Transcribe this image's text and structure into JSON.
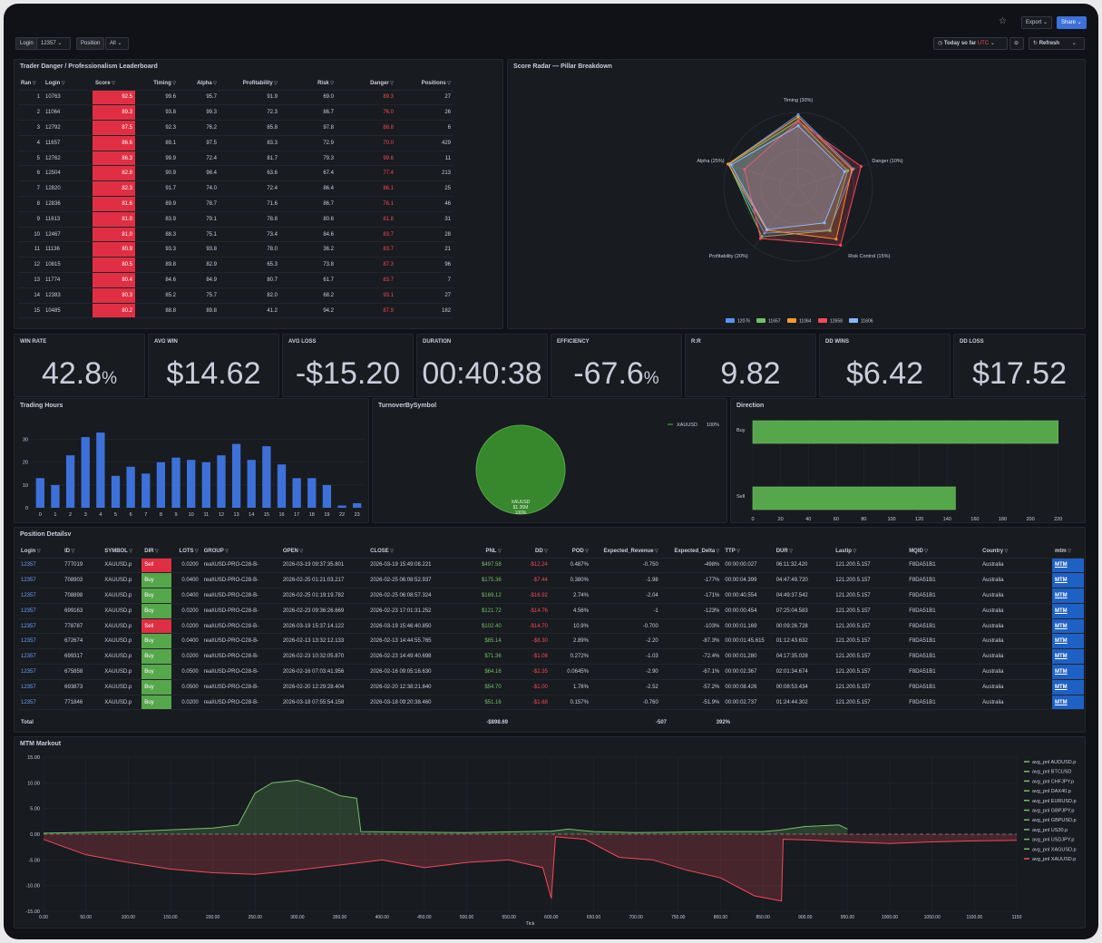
{
  "topbar": {
    "export_label": "Export",
    "share_label": "Share"
  },
  "filters": {
    "login_label": "Login",
    "login_value": "12357",
    "position_label": "Position",
    "position_value": "All"
  },
  "time": {
    "range_label": "Today so far",
    "tz": "UTC",
    "refresh_label": "Refresh"
  },
  "leaderboard": {
    "title": "Trader Danger / Professionalism Leaderboard",
    "columns": [
      "Ran",
      "Login",
      "Score",
      "Timing",
      "Alpha",
      "Profitability",
      "Risk",
      "Danger",
      "Positions"
    ],
    "rows": [
      [
        "1",
        "10763",
        "92.5",
        "99.6",
        "95.7",
        "91.9",
        "69.0",
        "89.3",
        "27"
      ],
      [
        "2",
        "11064",
        "89.3",
        "93.8",
        "99.3",
        "72.3",
        "86.7",
        "76.0",
        "26"
      ],
      [
        "3",
        "12792",
        "87.5",
        "92.3",
        "76.2",
        "85.8",
        "97.8",
        "88.8",
        "6"
      ],
      [
        "4",
        "11657",
        "86.6",
        "89.1",
        "97.5",
        "83.3",
        "72.9",
        "70.0",
        "429"
      ],
      [
        "5",
        "12762",
        "86.3",
        "99.9",
        "72.4",
        "81.7",
        "79.3",
        "99.6",
        "11"
      ],
      [
        "6",
        "12504",
        "82.8",
        "90.9",
        "98.4",
        "63.6",
        "67.4",
        "77.4",
        "213"
      ],
      [
        "7",
        "12820",
        "82.3",
        "91.7",
        "74.0",
        "72.4",
        "86.4",
        "86.1",
        "25"
      ],
      [
        "8",
        "12836",
        "81.6",
        "89.9",
        "78.7",
        "71.6",
        "86.7",
        "76.1",
        "46"
      ],
      [
        "9",
        "11613",
        "81.0",
        "83.9",
        "79.1",
        "78.8",
        "80.6",
        "81.8",
        "31"
      ],
      [
        "10",
        "12467",
        "81.0",
        "88.3",
        "75.1",
        "73.4",
        "84.6",
        "83.7",
        "28"
      ],
      [
        "11",
        "11136",
        "80.9",
        "93.3",
        "93.8",
        "78.0",
        "36.2",
        "83.7",
        "21"
      ],
      [
        "12",
        "10815",
        "80.5",
        "89.8",
        "82.9",
        "65.3",
        "73.8",
        "87.3",
        "96"
      ],
      [
        "13",
        "11774",
        "80.4",
        "84.6",
        "84.9",
        "80.7",
        "61.7",
        "83.7",
        "7"
      ],
      [
        "14",
        "12383",
        "80.3",
        "85.2",
        "75.7",
        "82.0",
        "68.2",
        "93.1",
        "27"
      ],
      [
        "15",
        "10485",
        "80.2",
        "88.8",
        "89.8",
        "41.2",
        "94.2",
        "87.9",
        "182"
      ]
    ]
  },
  "radar": {
    "title": "Score Radar — Pillar Breakdown",
    "axes": [
      "Timing (30%)",
      "Danger (10%)",
      "Risk Control (15%)",
      "Profitability (20%)",
      "Alpha (25%)"
    ],
    "series": [
      {
        "name": "12076",
        "color": "#5794f2",
        "values": [
          97,
          78,
          72,
          77,
          99
        ]
      },
      {
        "name": "11657",
        "color": "#73bf69",
        "values": [
          89,
          70,
          73,
          83,
          98
        ]
      },
      {
        "name": "11064",
        "color": "#ff9830",
        "values": [
          94,
          76,
          87,
          72,
          99
        ]
      },
      {
        "name": "12658",
        "color": "#f2495c",
        "values": [
          88,
          89,
          97,
          86,
          76
        ]
      },
      {
        "name": "11606",
        "color": "#8ab8ff",
        "values": [
          82,
          66,
          60,
          71,
          95
        ]
      }
    ]
  },
  "stats": [
    {
      "label": "WIN RATE",
      "value": "42.8",
      "unit": "%"
    },
    {
      "label": "AVG WIN",
      "value": "$14.62",
      "unit": ""
    },
    {
      "label": "AVG LOSS",
      "value": "-$15.20",
      "unit": ""
    },
    {
      "label": "DURATION",
      "value": "00:40:38",
      "unit": ""
    },
    {
      "label": "EFFICIENCY",
      "value": "-67.6",
      "unit": "%"
    },
    {
      "label": "R:R",
      "value": "9.82",
      "unit": ""
    },
    {
      "label": "DD WINS",
      "value": "$6.42",
      "unit": ""
    },
    {
      "label": "DD LOSS",
      "value": "$17.52",
      "unit": ""
    }
  ],
  "chart_data": [
    {
      "type": "bar",
      "title": "Trading Hours",
      "categories": [
        "0",
        "1",
        "2",
        "3",
        "4",
        "5",
        "6",
        "7",
        "8",
        "9",
        "10",
        "11",
        "12",
        "13",
        "14",
        "15",
        "16",
        "17",
        "18",
        "19",
        "22",
        "23"
      ],
      "values": [
        13,
        10,
        23,
        31,
        33,
        14,
        18,
        15,
        20,
        22,
        21,
        20,
        23,
        28,
        21,
        27,
        19,
        13,
        13,
        10,
        1,
        2
      ],
      "ylim": [
        0,
        35
      ],
      "yticks": [
        0,
        10,
        20,
        30
      ],
      "color": "#3d71d9"
    },
    {
      "type": "pie",
      "title": "TurnoverBySymbol",
      "legend": [
        "XAUUSD"
      ],
      "legend_value": "100%",
      "slices": [
        {
          "label": "XAUUSD",
          "value": 100
        }
      ],
      "slice_texts": [
        "XAUUSD",
        "$1.35M",
        "100%"
      ],
      "color": "#37872d"
    },
    {
      "type": "bar",
      "orientation": "horizontal",
      "title": "Direction",
      "categories": [
        "Buy",
        "Sell"
      ],
      "values": [
        220,
        146
      ],
      "xlim": [
        0,
        230
      ],
      "xticks": [
        0,
        20,
        40,
        60,
        80,
        100,
        120,
        140,
        160,
        180,
        200,
        220
      ],
      "color": "#56a64b"
    },
    {
      "type": "line",
      "title": "MTM Markout",
      "xlabel": "Tick",
      "ylim": [
        -15,
        15
      ],
      "yticks": [
        "15.00",
        "10.00",
        "5.00",
        "0.00",
        "-5.00",
        "-10.00",
        "-15.00"
      ],
      "xlim": [
        0,
        1150
      ],
      "xticks": [
        "0.00",
        "50.00",
        "100.00",
        "150.00",
        "200.00",
        "250.00",
        "300.00",
        "350.00",
        "400.00",
        "450.00",
        "500.00",
        "550.00",
        "600.00",
        "650.00",
        "700.00",
        "750.00",
        "800.00",
        "850.00",
        "900.00",
        "950.00",
        "1000.00",
        "1050.00",
        "1100.00",
        "1150"
      ],
      "series": [
        {
          "name": "avg_pnl AUDUSD.p",
          "color": "#73bf69"
        },
        {
          "name": "avg_pnl BTCUSD",
          "color": "#73bf69"
        },
        {
          "name": "avg_pnl CHFJPY.p",
          "color": "#73bf69"
        },
        {
          "name": "avg_pnl DAX40.p",
          "color": "#73bf69"
        },
        {
          "name": "avg_pnl EURUSD.p",
          "color": "#73bf69"
        },
        {
          "name": "avg_pnl GBPJPY.p",
          "color": "#73bf69"
        },
        {
          "name": "avg_pnl GBPUSD.p",
          "color": "#73bf69"
        },
        {
          "name": "avg_pnl US30.p",
          "color": "#73bf69"
        },
        {
          "name": "avg_pnl USDJPY.p",
          "color": "#73bf69"
        },
        {
          "name": "avg_pnl XAGUSD.p",
          "color": "#73bf69"
        },
        {
          "name": "avg_pnl XAUUSD.p",
          "color": "#f2495c",
          "points": [
            [
              0,
              -1
            ],
            [
              25,
              -2.5
            ],
            [
              50,
              -4
            ],
            [
              100,
              -5.5
            ],
            [
              150,
              -6.8
            ],
            [
              200,
              -7.5
            ],
            [
              250,
              -7.8
            ],
            [
              300,
              -7
            ],
            [
              350,
              -6
            ],
            [
              400,
              -5
            ],
            [
              450,
              -6.5
            ],
            [
              500,
              -5.5
            ],
            [
              550,
              -5
            ],
            [
              590,
              -6.5
            ],
            [
              600,
              -12.5
            ],
            [
              605,
              -0.5
            ],
            [
              640,
              -1
            ],
            [
              680,
              -4.5
            ],
            [
              720,
              -5
            ],
            [
              760,
              -7
            ],
            [
              800,
              -8.5
            ],
            [
              840,
              -12
            ],
            [
              872,
              -13
            ],
            [
              874,
              -1
            ],
            [
              900,
              -1.1
            ],
            [
              950,
              -1.5
            ],
            [
              1000,
              -1.8
            ],
            [
              1050,
              -1.5
            ],
            [
              1100,
              -1.3
            ],
            [
              1150,
              -1.2
            ]
          ]
        },
        {
          "name": "",
          "color": "#73bf69",
          "points": [
            [
              0,
              0.2
            ],
            [
              100,
              0.5
            ],
            [
              200,
              1.2
            ],
            [
              230,
              1.8
            ],
            [
              250,
              8
            ],
            [
              270,
              10
            ],
            [
              300,
              10.5
            ],
            [
              330,
              9
            ],
            [
              350,
              7.5
            ],
            [
              370,
              7
            ],
            [
              375,
              0.5
            ],
            [
              500,
              0.3
            ],
            [
              600,
              0.6
            ],
            [
              620,
              1
            ],
            [
              650,
              0.5
            ],
            [
              700,
              0.3
            ],
            [
              750,
              0.4
            ],
            [
              800,
              0.5
            ],
            [
              850,
              0.5
            ],
            [
              870,
              0.8
            ],
            [
              900,
              1.5
            ],
            [
              940,
              1.8
            ],
            [
              950,
              1
            ]
          ]
        }
      ]
    }
  ],
  "positions": {
    "title": "Position Detailsv",
    "columns": [
      "Login",
      "ID",
      "SYMBOL",
      "DIR",
      "LOTS",
      "GROUP",
      "OPEN",
      "CLOSE",
      "PNL",
      "DD",
      "POD",
      "Expected_Revenue",
      "Expected_Delta",
      "TTP",
      "DUR",
      "Lastip",
      "MQID",
      "Country",
      "mtm"
    ],
    "rows": [
      [
        "12357",
        "777019",
        "XAUUSD.p",
        "Sell",
        "0.0200",
        "real\\USD-PRO-C28-B-",
        "2026-03-19 09:37:35.801",
        "2026-03-19 15:49:08.221",
        "$497.58",
        "-$12.24",
        "0.487%",
        "-0.750",
        "-498%",
        "00:00:00.027",
        "06:11:32.420",
        "121.200.5.157",
        "F8DA51B1",
        "Australia",
        "MTM"
      ],
      [
        "12357",
        "708903",
        "XAUUSD.p",
        "Buy",
        "0.0400",
        "real\\USD-PRO-C28-B-",
        "2026-02-25 01:21:03.217",
        "2026-02-25 06:08:52.937",
        "$175.36",
        "-$7.44",
        "0.380%",
        "-1.98",
        "-177%",
        "00:00:04.399",
        "04:47:49.720",
        "121.200.5.157",
        "F8DA51B1",
        "Australia",
        "MTM"
      ],
      [
        "12357",
        "708898",
        "XAUUSD.p",
        "Buy",
        "0.0400",
        "real\\USD-PRO-C28-B-",
        "2026-02-25 01:19:19.782",
        "2026-02-25 06:08:57.324",
        "$169.12",
        "-$16.92",
        "2.74%",
        "-2.04",
        "-171%",
        "00:00:40.554",
        "04:49:37.542",
        "121.200.5.157",
        "F8DA51B1",
        "Australia",
        "MTM"
      ],
      [
        "12357",
        "699163",
        "XAUUSD.p",
        "Buy",
        "0.0200",
        "real\\USD-PRO-C28-B-",
        "2026-02-23 09:36:26.669",
        "2026-02-23 17:01:31.252",
        "$121.72",
        "-$14.76",
        "4.56%",
        "-1",
        "-123%",
        "00:00:00.454",
        "07:25:04.583",
        "121.200.5.157",
        "F8DA51B1",
        "Australia",
        "MTM"
      ],
      [
        "12357",
        "778787",
        "XAUUSD.p",
        "Sell",
        "0.0200",
        "real\\USD-PRO-C28-B-",
        "2026-03-19 15:37:14.122",
        "2026-03-19 15:46:40.850",
        "$102.40",
        "-$14.70",
        "10.9%",
        "-0.700",
        "-103%",
        "00:00:01.169",
        "00:09:26.728",
        "121.200.5.157",
        "F8DA51B1",
        "Australia",
        "MTM"
      ],
      [
        "12357",
        "672674",
        "XAUUSD.p",
        "Buy",
        "0.0400",
        "real\\USD-PRO-C28-B-",
        "2026-02-13 13:32:12.133",
        "2026-02-13 14:44:55.765",
        "$85.14",
        "-$8.30",
        "2.89%",
        "-2.20",
        "-87.3%",
        "00:00:01:45.615",
        "01:12:43.632",
        "121.200.5.157",
        "F8DA51B1",
        "Australia",
        "MTM"
      ],
      [
        "12357",
        "699317",
        "XAUUSD.p",
        "Buy",
        "0.0200",
        "real\\USD-PRO-C28-B-",
        "2026-02-23 10:32:05.870",
        "2026-02-23 14:49:40.698",
        "$71.36",
        "-$1.08",
        "0.272%",
        "-1.03",
        "-72.4%",
        "00:00:01.280",
        "04:17:35.028",
        "121.200.5.157",
        "F8DA51B1",
        "Australia",
        "MTM"
      ],
      [
        "12357",
        "675858",
        "XAUUSD.p",
        "Buy",
        "0.0500",
        "real\\USD-PRO-C28-B-",
        "2026-02-16 07:03:41.956",
        "2026-02-16 09:05:16.630",
        "$64.16",
        "-$2.35",
        "0.0645%",
        "-2.90",
        "-67.1%",
        "00:00:02.367",
        "02:01:34.674",
        "121.200.5.157",
        "F8DA51B1",
        "Australia",
        "MTM"
      ],
      [
        "12357",
        "693873",
        "XAUUSD.p",
        "Buy",
        "0.0500",
        "real\\USD-PRO-C28-B-",
        "2026-02-20 12:29:28.404",
        "2026-02-20 12:38:21.840",
        "$54.70",
        "-$1.00",
        "1.76%",
        "-2.52",
        "-57.2%",
        "00:00:08.426",
        "00:08:53.434",
        "121.200.5.157",
        "F8DA51B1",
        "Australia",
        "MTM"
      ],
      [
        "12357",
        "771846",
        "XAUUSD.p",
        "Buy",
        "0.0200",
        "real\\USD-PRO-C28-B-",
        "2026-03-18 07:55:54.158",
        "2026-03-18 09:20:38.460",
        "$51.16",
        "-$1.68",
        "0.157%",
        "-0.760",
        "-51.9%",
        "00:00:02.737",
        "01:24:44.302",
        "121.200.5.157",
        "F8DA51B1",
        "Australia",
        "MTM"
      ]
    ],
    "total_label": "Total",
    "total_pnl": "-$898.69",
    "total_rev": "-507",
    "total_delta": "392%"
  },
  "colors": {
    "bg": "#111217",
    "panel": "#181b1f",
    "red": "#e02f44",
    "green": "#56a64b",
    "blue": "#1f60c4",
    "link": "#6e9fff"
  }
}
